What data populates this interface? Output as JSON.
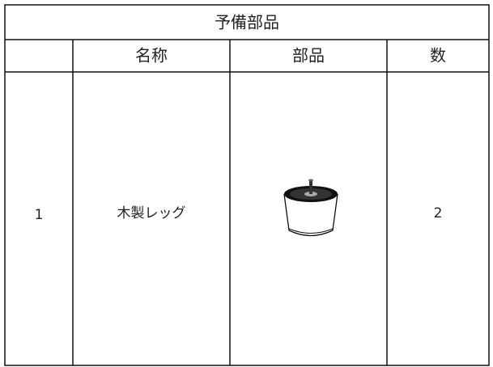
{
  "table": {
    "title": "予備部品",
    "headers": [
      "名称",
      "部品",
      "数"
    ],
    "rows": [
      {
        "no": 1,
        "name": "木製レッグ",
        "qty": 2
      }
    ]
  }
}
